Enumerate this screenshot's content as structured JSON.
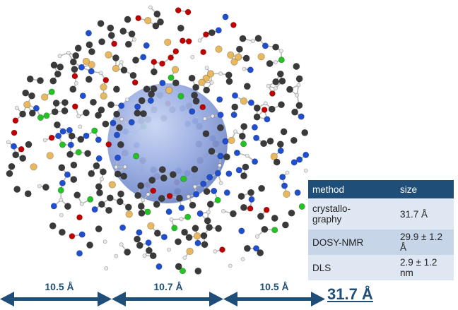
{
  "table": {
    "headers": [
      "method",
      "size"
    ],
    "rows": [
      {
        "method": "crystallo-\ngraphy",
        "size": "31.7 Å"
      },
      {
        "method": "DOSY-NMR",
        "size": "29.9 ± 1.2 Å"
      },
      {
        "method": "DLS",
        "size": "2.9 ± 1.2 nm"
      }
    ]
  },
  "dimensions": {
    "segments": [
      "10.5 Å",
      "10.7 Å",
      "10.5 Å"
    ],
    "total": "31.7 Å"
  },
  "colors": {
    "arrow": "#1f4e79",
    "header_bg": "#1f4e79",
    "sphere": "#8fa6e0",
    "carbon": "#3a3a3a",
    "nitrogen": "#1f4fd0",
    "oxygen": "#c00000",
    "chlorine": "#22c322",
    "metal": "#e8b860",
    "hydrogen": "#e8e8e8"
  }
}
